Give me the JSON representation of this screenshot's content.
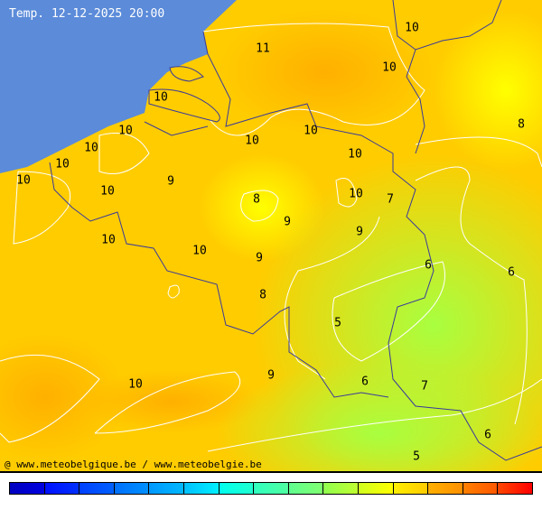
{
  "title": "Temp. 12-12-2025 20:00",
  "credit": "@ www.meteobelgique.be / www.meteobelgie.be",
  "colors": {
    "sea": "#5b8bd9",
    "border": "#3a3a9a",
    "isoline": "#ffffff"
  },
  "labels": [
    "10",
    "11",
    "10",
    "10",
    "8",
    "10",
    "10",
    "10",
    "10",
    "10",
    "10",
    "10",
    "9",
    "10",
    "8",
    "10",
    "7",
    "9",
    "9",
    "10",
    "10",
    "9",
    "6",
    "6",
    "8",
    "5",
    "9",
    "10",
    "6",
    "7",
    "6",
    "5"
  ],
  "colorbar": [
    [
      "#0000c0",
      "#0000e0"
    ],
    [
      "#0010ff",
      "#0030ff"
    ],
    [
      "#0040ff",
      "#0060ff"
    ],
    [
      "#0070ff",
      "#0090ff"
    ],
    [
      "#0098ff",
      "#00b8ff"
    ],
    [
      "#00c0ff",
      "#00f0ff"
    ],
    [
      "#00ffee",
      "#20ffd0"
    ],
    [
      "#30ffc0",
      "#50ff a0"
    ],
    [
      "#60ff90",
      "#80ff70"
    ],
    [
      "#90ff50",
      "#c0ff30"
    ],
    [
      "#d0ff20",
      "#ffff00"
    ],
    [
      "#ffee00",
      "#ffcc00"
    ],
    [
      "#ffb000",
      "#ff9000"
    ],
    [
      "#ff8000",
      "#ff5800"
    ],
    [
      "#ff4800",
      "#ff0000"
    ]
  ]
}
